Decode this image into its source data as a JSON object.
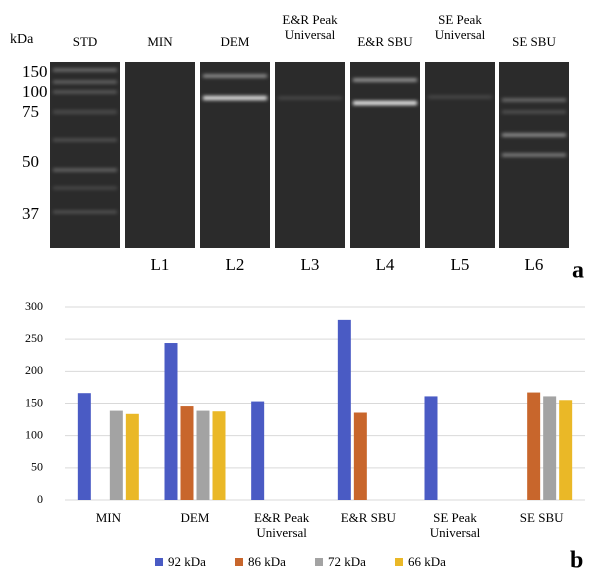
{
  "gel": {
    "unit_label": "kDa",
    "lanes": [
      "STD",
      "MIN",
      "DEM",
      "E&R Peak Universal",
      "E&R SBU",
      "SE Peak Universal",
      "SE SBU"
    ],
    "markers": [
      150,
      100,
      75,
      50,
      37
    ],
    "lane_ids": [
      "L1",
      "L2",
      "L3",
      "L4",
      "L5",
      "L6"
    ],
    "panel_label": "a"
  },
  "chart_data": {
    "type": "bar",
    "panel_label": "b",
    "categories": [
      "MIN",
      "DEM",
      "E&R Peak Universal",
      "E&R SBU",
      "SE Peak Universal",
      "SE SBU"
    ],
    "series": [
      {
        "name": "92 kDa",
        "color": "#4a5bc4",
        "values": [
          166,
          244,
          153,
          280,
          161,
          null
        ]
      },
      {
        "name": "86 kDa",
        "color": "#c8662c",
        "values": [
          null,
          146,
          null,
          136,
          null,
          167
        ]
      },
      {
        "name": "72 kDa",
        "color": "#a3a3a3",
        "values": [
          139,
          139,
          null,
          null,
          null,
          161
        ]
      },
      {
        "name": "66 kDa",
        "color": "#eab827",
        "values": [
          134,
          138,
          null,
          null,
          null,
          155
        ]
      }
    ],
    "ylim": [
      0,
      300
    ],
    "yticks": [
      0,
      50,
      100,
      150,
      200,
      250,
      300
    ],
    "grid": true,
    "legend": "bottom"
  }
}
